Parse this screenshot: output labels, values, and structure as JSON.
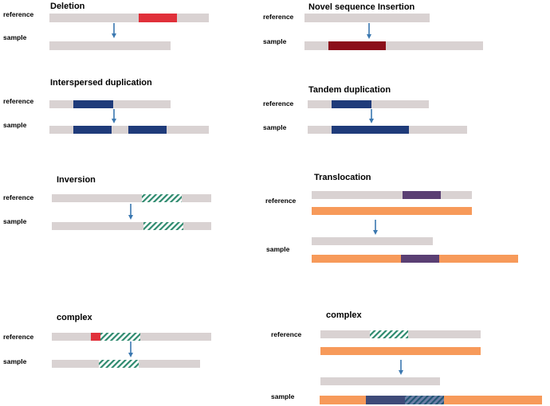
{
  "colors": {
    "track": "#d9d2d2",
    "deletion": "#e0303a",
    "novel_insertion": "#8b0f1a",
    "duplication": "#1f3b7a",
    "inversion_stripe": "#2e8a6e",
    "translocation_track": "#f79a5a",
    "translocation_segment": "#5a3f73",
    "complex_segment": "#3e4a78",
    "arrow": "#3b78b0"
  },
  "panels": {
    "deletion": {
      "title": "Deletion",
      "reference_label": "reference",
      "sample_label": "sample"
    },
    "novel_insertion": {
      "title": "Novel sequence Insertion",
      "reference_label": "reference",
      "sample_label": "sample"
    },
    "interspersed_duplication": {
      "title": "Interspersed duplication",
      "reference_label": "reference",
      "sample_label": "sample"
    },
    "tandem_duplication": {
      "title": "Tandem duplication",
      "reference_label": "reference",
      "sample_label": "sample"
    },
    "inversion": {
      "title": "Inversion",
      "reference_label": "reference",
      "sample_label": "sample"
    },
    "translocation": {
      "title": "Translocation",
      "reference_label": "reference",
      "sample_label": "sample"
    },
    "complex_left": {
      "title": "complex",
      "reference_label": "reference",
      "sample_label": "sample"
    },
    "complex_right": {
      "title": "complex",
      "reference_label": "reference",
      "sample_label": "sample"
    }
  }
}
